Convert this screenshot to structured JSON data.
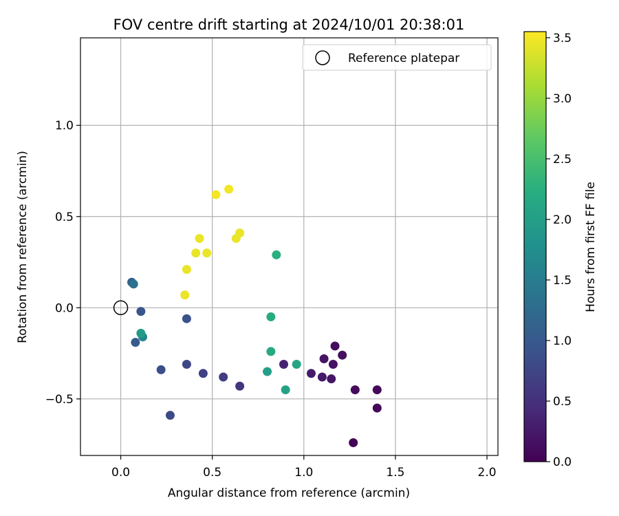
{
  "chart_data": {
    "type": "scatter",
    "title": "FOV centre drift starting at 2024/10/01 20:38:01",
    "xlabel": "Angular distance from reference (arcmin)",
    "ylabel": "Rotation from reference (arcmin)",
    "xlim": [
      -0.22,
      2.06
    ],
    "ylim": [
      -0.81,
      1.48
    ],
    "xticks": [
      0.0,
      0.5,
      1.0,
      1.5,
      2.0
    ],
    "xtick_labels": [
      "0.0",
      "0.5",
      "1.0",
      "1.5",
      "2.0"
    ],
    "yticks": [
      -0.5,
      0.0,
      0.5,
      1.0
    ],
    "ytick_labels": [
      "−0.5",
      "0.0",
      "0.5",
      "1.0"
    ],
    "grid": true,
    "legend": {
      "placement": "top-right",
      "entries": [
        "Reference platepar"
      ]
    },
    "reference_point": {
      "x": 0.0,
      "y": 0.0
    },
    "colorbar": {
      "label": "Hours from first FF file",
      "colormap": "viridis",
      "range": [
        0.0,
        3.55
      ],
      "ticks": [
        0.0,
        0.5,
        1.0,
        1.5,
        2.0,
        2.5,
        3.0,
        3.5
      ],
      "tick_labels": [
        "0.0",
        "0.5",
        "1.0",
        "1.5",
        "2.0",
        "2.5",
        "3.0",
        "3.5"
      ]
    },
    "points": [
      {
        "x": 1.27,
        "y": -0.74,
        "hours": 0.02
      },
      {
        "x": 1.4,
        "y": -0.55,
        "hours": 0.05
      },
      {
        "x": 1.4,
        "y": -0.45,
        "hours": 0.08
      },
      {
        "x": 1.28,
        "y": -0.45,
        "hours": 0.1
      },
      {
        "x": 1.17,
        "y": -0.21,
        "hours": 0.12
      },
      {
        "x": 1.21,
        "y": -0.26,
        "hours": 0.15
      },
      {
        "x": 1.16,
        "y": -0.31,
        "hours": 0.17
      },
      {
        "x": 1.11,
        "y": -0.28,
        "hours": 0.2
      },
      {
        "x": 1.15,
        "y": -0.39,
        "hours": 0.22
      },
      {
        "x": 1.1,
        "y": -0.38,
        "hours": 0.25
      },
      {
        "x": 1.04,
        "y": -0.36,
        "hours": 0.27
      },
      {
        "x": 0.89,
        "y": -0.31,
        "hours": 0.35
      },
      {
        "x": 0.65,
        "y": -0.43,
        "hours": 0.55
      },
      {
        "x": 0.56,
        "y": -0.38,
        "hours": 0.65
      },
      {
        "x": 0.45,
        "y": -0.36,
        "hours": 0.7
      },
      {
        "x": 0.36,
        "y": -0.31,
        "hours": 0.75
      },
      {
        "x": 0.27,
        "y": -0.59,
        "hours": 0.8
      },
      {
        "x": 0.22,
        "y": -0.34,
        "hours": 0.85
      },
      {
        "x": 0.36,
        "y": -0.06,
        "hours": 0.9
      },
      {
        "x": 0.11,
        "y": -0.02,
        "hours": 0.95
      },
      {
        "x": 0.08,
        "y": -0.19,
        "hours": 1.0
      },
      {
        "x": 0.06,
        "y": 0.14,
        "hours": 1.1
      },
      {
        "x": 0.07,
        "y": 0.13,
        "hours": 1.35
      },
      {
        "x": 0.12,
        "y": -0.16,
        "hours": 1.65
      },
      {
        "x": 0.11,
        "y": -0.14,
        "hours": 1.95
      },
      {
        "x": 0.8,
        "y": -0.35,
        "hours": 2.0
      },
      {
        "x": 0.9,
        "y": -0.45,
        "hours": 2.05
      },
      {
        "x": 0.96,
        "y": -0.31,
        "hours": 2.1
      },
      {
        "x": 0.82,
        "y": -0.24,
        "hours": 2.15
      },
      {
        "x": 0.82,
        "y": -0.05,
        "hours": 2.2
      },
      {
        "x": 0.85,
        "y": 0.29,
        "hours": 2.25
      },
      {
        "x": 0.35,
        "y": 0.07,
        "hours": 3.45
      },
      {
        "x": 0.36,
        "y": 0.21,
        "hours": 3.45
      },
      {
        "x": 0.41,
        "y": 0.3,
        "hours": 3.45
      },
      {
        "x": 0.47,
        "y": 0.3,
        "hours": 3.45
      },
      {
        "x": 0.43,
        "y": 0.38,
        "hours": 3.45
      },
      {
        "x": 0.63,
        "y": 0.38,
        "hours": 3.45
      },
      {
        "x": 0.65,
        "y": 0.41,
        "hours": 3.45
      },
      {
        "x": 0.52,
        "y": 0.62,
        "hours": 3.5
      },
      {
        "x": 0.59,
        "y": 0.65,
        "hours": 3.5
      }
    ]
  }
}
